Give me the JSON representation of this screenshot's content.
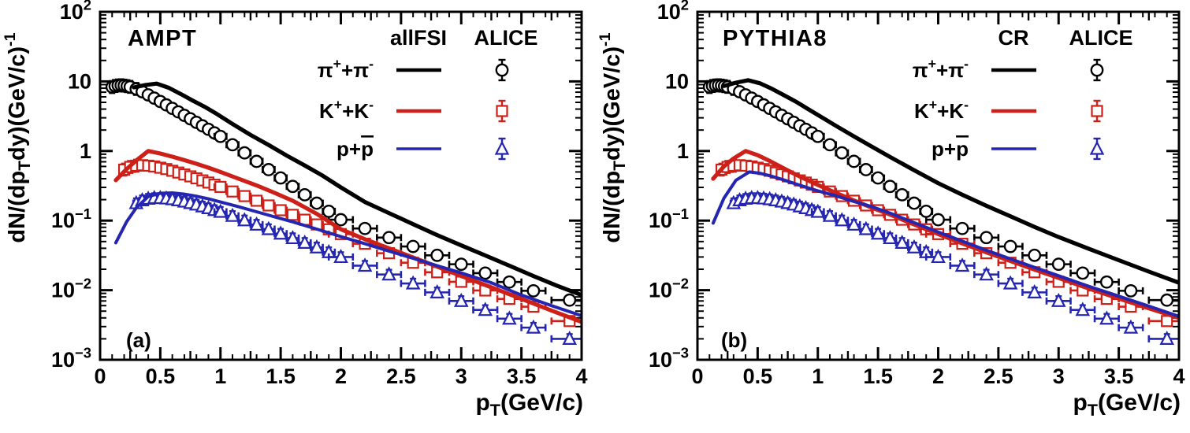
{
  "chart_data": {
    "type": "line+scatter",
    "grid": false,
    "legend_position": "top-right-inside",
    "x_axis": {
      "label": "p_T(GeV/c)",
      "label_segments": [
        {
          "t": "p"
        },
        {
          "t": "T",
          "s": "sub"
        },
        {
          "t": "(GeV/c)"
        }
      ],
      "range": [
        0,
        4
      ],
      "major_step": 0.5,
      "medium_step": 0.25,
      "minor_step": 0.1,
      "major_tick_labels": [
        "0",
        "0.5",
        "1",
        "1.5",
        "2",
        "2.5",
        "3",
        "3.5",
        "4"
      ]
    },
    "y_axis": {
      "label": "dN/(dp_T dy)(GeV/c)^-1",
      "label_segments": [
        {
          "t": "dN/(dp"
        },
        {
          "t": "T",
          "s": "sub"
        },
        {
          "t": "dy)(GeV/c)"
        },
        {
          "t": "-1",
          "s": "sup"
        }
      ],
      "scale": "log",
      "range": [
        0.001,
        100
      ],
      "decade_exponents": [
        2,
        1,
        0,
        -1,
        -2,
        -3
      ]
    },
    "species": [
      {
        "key": "pion",
        "label": "pi+ + pi-",
        "label_segments": [
          {
            "t": "π"
          },
          {
            "t": "+",
            "s": "sup"
          },
          {
            "t": "+π"
          },
          {
            "t": "-",
            "s": "sup"
          }
        ],
        "marker": "circle",
        "color": "#000000",
        "line_width": 4.6
      },
      {
        "key": "kaon",
        "label": "K+ + K-",
        "label_segments": [
          {
            "t": "K"
          },
          {
            "t": "+",
            "s": "sup"
          },
          {
            "t": "+K"
          },
          {
            "t": "-",
            "s": "sup"
          }
        ],
        "marker": "square",
        "color": "#cc2018",
        "line_width": 4.6
      },
      {
        "key": "proton",
        "label": "p + pbar",
        "label_segments": [
          {
            "t": "p+"
          },
          {
            "t": "p",
            "s": "bar"
          }
        ],
        "marker": "triangle-up",
        "color": "#2425b0",
        "line_width": 3.4
      }
    ],
    "alice_points": {
      "pion": [
        [
          0.1,
          8.3
        ],
        [
          0.125,
          8.6
        ],
        [
          0.15,
          8.75
        ],
        [
          0.175,
          8.8
        ],
        [
          0.2,
          8.7
        ],
        [
          0.225,
          8.55
        ],
        [
          0.25,
          8.35
        ],
        [
          0.3,
          7.8
        ],
        [
          0.35,
          7.1
        ],
        [
          0.4,
          6.4
        ],
        [
          0.45,
          5.75
        ],
        [
          0.5,
          5.15
        ],
        [
          0.55,
          4.6
        ],
        [
          0.6,
          4.1
        ],
        [
          0.65,
          3.65
        ],
        [
          0.7,
          3.25
        ],
        [
          0.75,
          2.9
        ],
        [
          0.8,
          2.58
        ],
        [
          0.85,
          2.3
        ],
        [
          0.9,
          2.05
        ],
        [
          0.95,
          1.82
        ],
        [
          1.0,
          1.62
        ],
        [
          1.1,
          1.23
        ],
        [
          1.2,
          0.94
        ],
        [
          1.3,
          0.71
        ],
        [
          1.4,
          0.54
        ],
        [
          1.5,
          0.41
        ],
        [
          1.6,
          0.31
        ],
        [
          1.7,
          0.235
        ],
        [
          1.8,
          0.178
        ],
        [
          1.9,
          0.136
        ],
        [
          2.0,
          0.103
        ],
        [
          2.2,
          0.077
        ],
        [
          2.4,
          0.057
        ],
        [
          2.6,
          0.0425
        ],
        [
          2.8,
          0.0317
        ],
        [
          3.0,
          0.0236
        ],
        [
          3.2,
          0.0176
        ],
        [
          3.4,
          0.0131
        ],
        [
          3.6,
          0.0098
        ],
        [
          3.9,
          0.0072
        ]
      ],
      "kaon": [
        [
          0.2,
          0.54
        ],
        [
          0.25,
          0.59
        ],
        [
          0.3,
          0.615
        ],
        [
          0.35,
          0.625
        ],
        [
          0.4,
          0.615
        ],
        [
          0.45,
          0.6
        ],
        [
          0.5,
          0.575
        ],
        [
          0.55,
          0.55
        ],
        [
          0.6,
          0.52
        ],
        [
          0.65,
          0.49
        ],
        [
          0.7,
          0.46
        ],
        [
          0.75,
          0.432
        ],
        [
          0.8,
          0.405
        ],
        [
          0.85,
          0.378
        ],
        [
          0.9,
          0.352
        ],
        [
          0.95,
          0.328
        ],
        [
          1.0,
          0.305
        ],
        [
          1.1,
          0.262
        ],
        [
          1.2,
          0.225
        ],
        [
          1.3,
          0.193
        ],
        [
          1.4,
          0.165
        ],
        [
          1.5,
          0.141
        ],
        [
          1.6,
          0.121
        ],
        [
          1.7,
          0.103
        ],
        [
          1.8,
          0.088
        ],
        [
          1.9,
          0.075
        ],
        [
          2.0,
          0.064
        ],
        [
          2.2,
          0.0465
        ],
        [
          2.4,
          0.034
        ],
        [
          2.6,
          0.0248
        ],
        [
          2.8,
          0.0181
        ],
        [
          3.0,
          0.0132
        ],
        [
          3.2,
          0.0099
        ],
        [
          3.4,
          0.0075
        ],
        [
          3.6,
          0.0058
        ],
        [
          3.9,
          0.0036
        ]
      ],
      "proton": [
        [
          0.3,
          0.178
        ],
        [
          0.35,
          0.196
        ],
        [
          0.4,
          0.206
        ],
        [
          0.45,
          0.211
        ],
        [
          0.5,
          0.211
        ],
        [
          0.55,
          0.208
        ],
        [
          0.6,
          0.203
        ],
        [
          0.65,
          0.196
        ],
        [
          0.7,
          0.188
        ],
        [
          0.75,
          0.179
        ],
        [
          0.8,
          0.17
        ],
        [
          0.85,
          0.16
        ],
        [
          0.9,
          0.151
        ],
        [
          0.95,
          0.142
        ],
        [
          1.0,
          0.134
        ],
        [
          1.1,
          0.117
        ],
        [
          1.2,
          0.101
        ],
        [
          1.3,
          0.0875
        ],
        [
          1.4,
          0.0755
        ],
        [
          1.5,
          0.065
        ],
        [
          1.6,
          0.056
        ],
        [
          1.7,
          0.048
        ],
        [
          1.8,
          0.0412
        ],
        [
          1.9,
          0.0352
        ],
        [
          2.0,
          0.03
        ],
        [
          2.2,
          0.0225
        ],
        [
          2.4,
          0.0168
        ],
        [
          2.6,
          0.0125
        ],
        [
          2.8,
          0.0093
        ],
        [
          3.0,
          0.007
        ],
        [
          3.2,
          0.0052
        ],
        [
          3.4,
          0.0039
        ],
        [
          3.6,
          0.0029
        ],
        [
          3.9,
          0.002
        ]
      ]
    },
    "panels": [
      {
        "key": "a",
        "title": "AMPT",
        "tag": "(a)",
        "model_legend": "allFSI",
        "data_legend": "ALICE",
        "lines": {
          "pion": [
            [
              0.28,
              8.2
            ],
            [
              0.38,
              8.9
            ],
            [
              0.47,
              9.3
            ],
            [
              0.57,
              8.1
            ],
            [
              0.67,
              6.6
            ],
            [
              0.77,
              5.3
            ],
            [
              0.87,
              4.3
            ],
            [
              0.97,
              3.4
            ],
            [
              1.1,
              2.45
            ],
            [
              1.25,
              1.7
            ],
            [
              1.4,
              1.22
            ],
            [
              1.55,
              0.86
            ],
            [
              1.7,
              0.62
            ],
            [
              1.85,
              0.44
            ],
            [
              2.0,
              0.3
            ],
            [
              2.2,
              0.185
            ],
            [
              2.4,
              0.128
            ],
            [
              2.6,
              0.089
            ],
            [
              2.8,
              0.062
            ],
            [
              3.0,
              0.044
            ],
            [
              3.2,
              0.0315
            ],
            [
              3.4,
              0.0225
            ],
            [
              3.6,
              0.016
            ],
            [
              3.8,
              0.0115
            ],
            [
              4.0,
              0.0085
            ]
          ],
          "kaon": [
            [
              0.13,
              0.38
            ],
            [
              0.22,
              0.55
            ],
            [
              0.3,
              0.73
            ],
            [
              0.4,
              1.0
            ],
            [
              0.5,
              0.92
            ],
            [
              0.6,
              0.83
            ],
            [
              0.7,
              0.74
            ],
            [
              0.8,
              0.655
            ],
            [
              0.9,
              0.575
            ],
            [
              1.0,
              0.5
            ],
            [
              1.15,
              0.4
            ],
            [
              1.3,
              0.32
            ],
            [
              1.45,
              0.25
            ],
            [
              1.6,
              0.193
            ],
            [
              1.8,
              0.125
            ],
            [
              2.0,
              0.075
            ],
            [
              2.2,
              0.054
            ],
            [
              2.4,
              0.04
            ],
            [
              2.6,
              0.0295
            ],
            [
              2.8,
              0.0218
            ],
            [
              3.0,
              0.016
            ],
            [
              3.25,
              0.011
            ],
            [
              3.5,
              0.0075
            ],
            [
              3.75,
              0.0051
            ],
            [
              4.0,
              0.0035
            ]
          ],
          "proton": [
            [
              0.13,
              0.048
            ],
            [
              0.22,
              0.096
            ],
            [
              0.3,
              0.152
            ],
            [
              0.4,
              0.222
            ],
            [
              0.5,
              0.247
            ],
            [
              0.6,
              0.25
            ],
            [
              0.7,
              0.24
            ],
            [
              0.8,
              0.224
            ],
            [
              0.9,
              0.205
            ],
            [
              1.0,
              0.185
            ],
            [
              1.15,
              0.158
            ],
            [
              1.3,
              0.134
            ],
            [
              1.45,
              0.113
            ],
            [
              1.6,
              0.096
            ],
            [
              1.8,
              0.0755
            ],
            [
              2.0,
              0.059
            ],
            [
              2.2,
              0.0465
            ],
            [
              2.4,
              0.0365
            ],
            [
              2.6,
              0.0287
            ],
            [
              2.8,
              0.0225
            ],
            [
              3.0,
              0.0177
            ],
            [
              3.25,
              0.0128
            ],
            [
              3.5,
              0.0085
            ],
            [
              3.75,
              0.006
            ],
            [
              4.0,
              0.0043
            ]
          ]
        }
      },
      {
        "key": "b",
        "title": "PYTHIA8",
        "tag": "(b)",
        "model_legend": "CR",
        "data_legend": "ALICE",
        "lines": {
          "pion": [
            [
              0.22,
              8.6
            ],
            [
              0.32,
              9.6
            ],
            [
              0.42,
              10.4
            ],
            [
              0.52,
              9.4
            ],
            [
              0.62,
              7.8
            ],
            [
              0.72,
              6.3
            ],
            [
              0.82,
              5.1
            ],
            [
              0.92,
              4.0
            ],
            [
              1.0,
              3.3
            ],
            [
              1.15,
              2.3
            ],
            [
              1.3,
              1.62
            ],
            [
              1.45,
              1.15
            ],
            [
              1.6,
              0.82
            ],
            [
              1.8,
              0.53
            ],
            [
              2.0,
              0.345
            ],
            [
              2.2,
              0.235
            ],
            [
              2.4,
              0.163
            ],
            [
              2.6,
              0.115
            ],
            [
              2.8,
              0.081
            ],
            [
              3.0,
              0.058
            ],
            [
              3.25,
              0.0395
            ],
            [
              3.5,
              0.027
            ],
            [
              3.75,
              0.0185
            ],
            [
              4.0,
              0.0128
            ]
          ],
          "kaon": [
            [
              0.13,
              0.4
            ],
            [
              0.22,
              0.6
            ],
            [
              0.3,
              0.78
            ],
            [
              0.4,
              1.0
            ],
            [
              0.5,
              0.87
            ],
            [
              0.6,
              0.72
            ],
            [
              0.7,
              0.585
            ],
            [
              0.8,
              0.475
            ],
            [
              0.9,
              0.39
            ],
            [
              1.0,
              0.325
            ],
            [
              1.15,
              0.25
            ],
            [
              1.3,
              0.195
            ],
            [
              1.45,
              0.153
            ],
            [
              1.6,
              0.122
            ],
            [
              1.8,
              0.088
            ],
            [
              2.0,
              0.064
            ],
            [
              2.2,
              0.047
            ],
            [
              2.4,
              0.035
            ],
            [
              2.6,
              0.0262
            ],
            [
              2.8,
              0.0198
            ],
            [
              3.0,
              0.015
            ],
            [
              3.25,
              0.0106
            ],
            [
              3.5,
              0.0076
            ],
            [
              3.75,
              0.0055
            ],
            [
              4.0,
              0.004
            ]
          ],
          "proton": [
            [
              0.13,
              0.092
            ],
            [
              0.22,
              0.21
            ],
            [
              0.32,
              0.38
            ],
            [
              0.43,
              0.5
            ],
            [
              0.52,
              0.478
            ],
            [
              0.62,
              0.432
            ],
            [
              0.72,
              0.382
            ],
            [
              0.82,
              0.335
            ],
            [
              0.92,
              0.295
            ],
            [
              1.0,
              0.268
            ],
            [
              1.15,
              0.227
            ],
            [
              1.3,
              0.188
            ],
            [
              1.45,
              0.158
            ],
            [
              1.6,
              0.128
            ],
            [
              1.8,
              0.0935
            ],
            [
              2.0,
              0.0685
            ],
            [
              2.2,
              0.0505
            ],
            [
              2.4,
              0.0375
            ],
            [
              2.6,
              0.0281
            ],
            [
              2.8,
              0.0213
            ],
            [
              3.0,
              0.0161
            ],
            [
              3.25,
              0.0114
            ],
            [
              3.5,
              0.0082
            ],
            [
              3.75,
              0.0059
            ],
            [
              4.0,
              0.0042
            ]
          ]
        }
      }
    ]
  }
}
